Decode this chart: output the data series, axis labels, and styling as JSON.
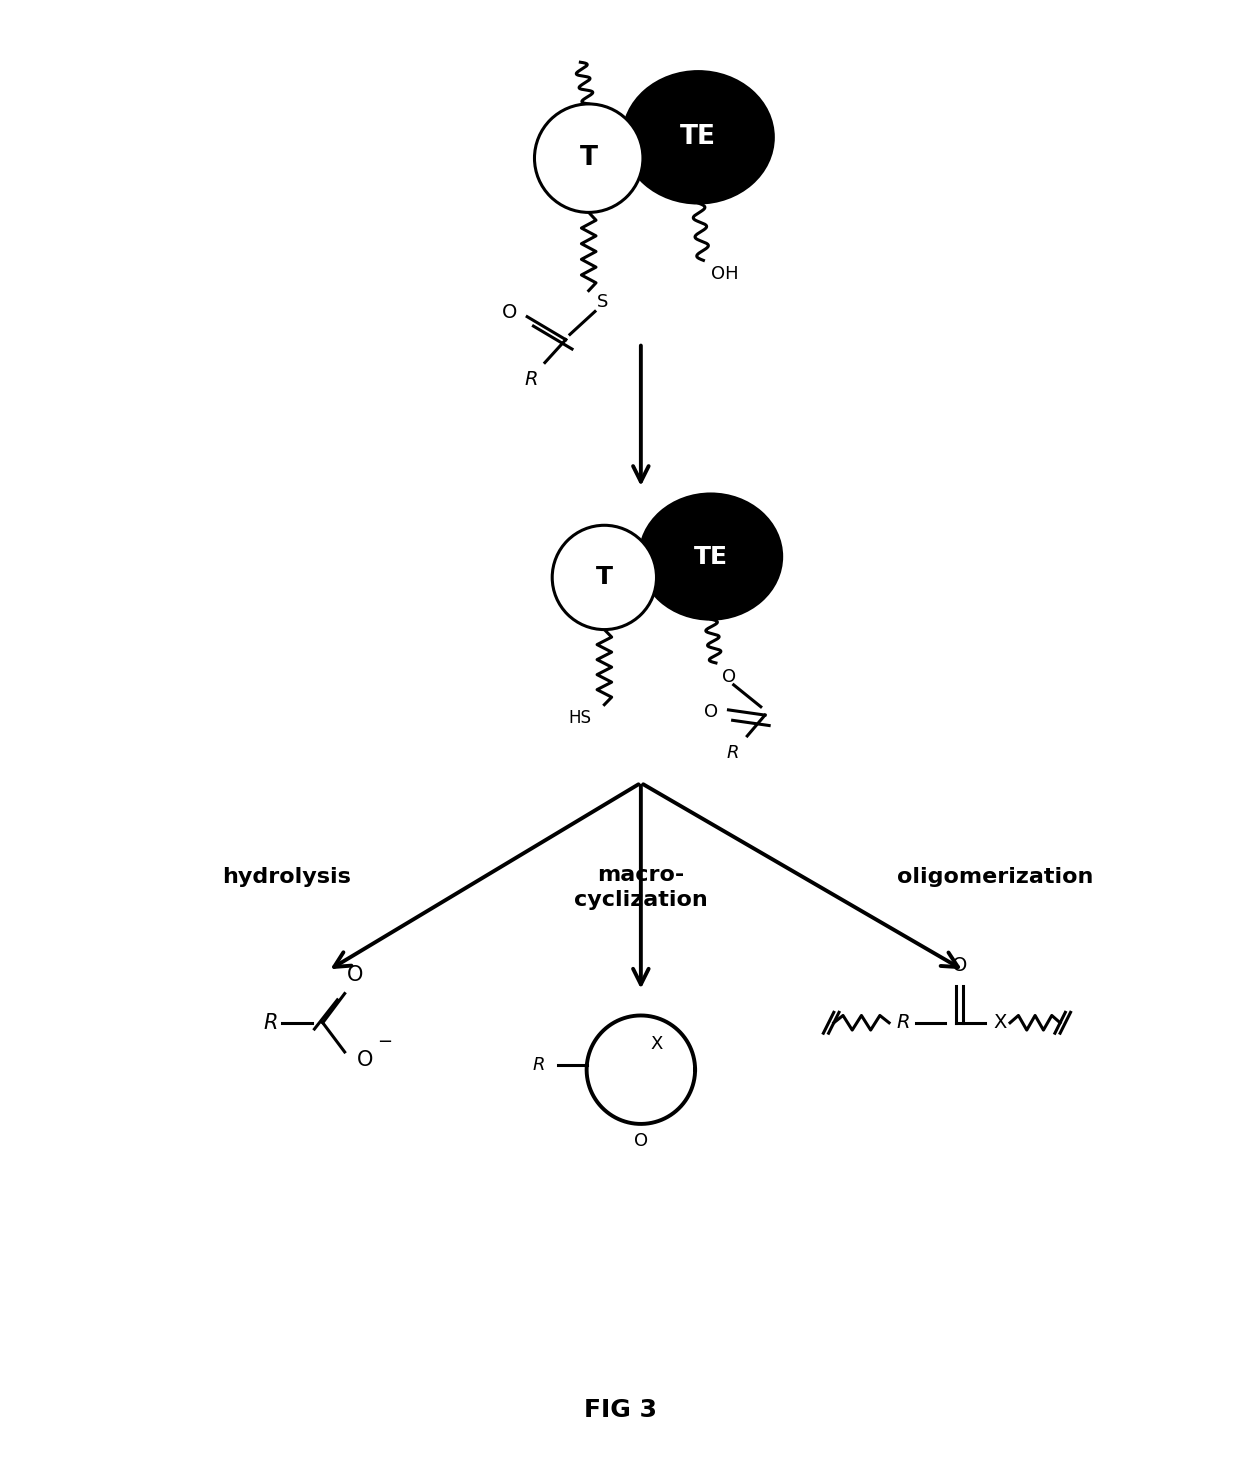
{
  "background_color": "#ffffff",
  "T_fill": "#ffffff",
  "T_edge": "#000000",
  "TE_fill": "#000000",
  "TE_text": "#ffffff",
  "T_text": "#000000",
  "label_hydrolysis": "hydrolysis",
  "label_macro": "macro-\ncyclization",
  "label_oligo": "oligomerization",
  "fig3_label": "FIG 3",
  "fig_width": 12.4,
  "fig_height": 14.74,
  "dpi": 100
}
